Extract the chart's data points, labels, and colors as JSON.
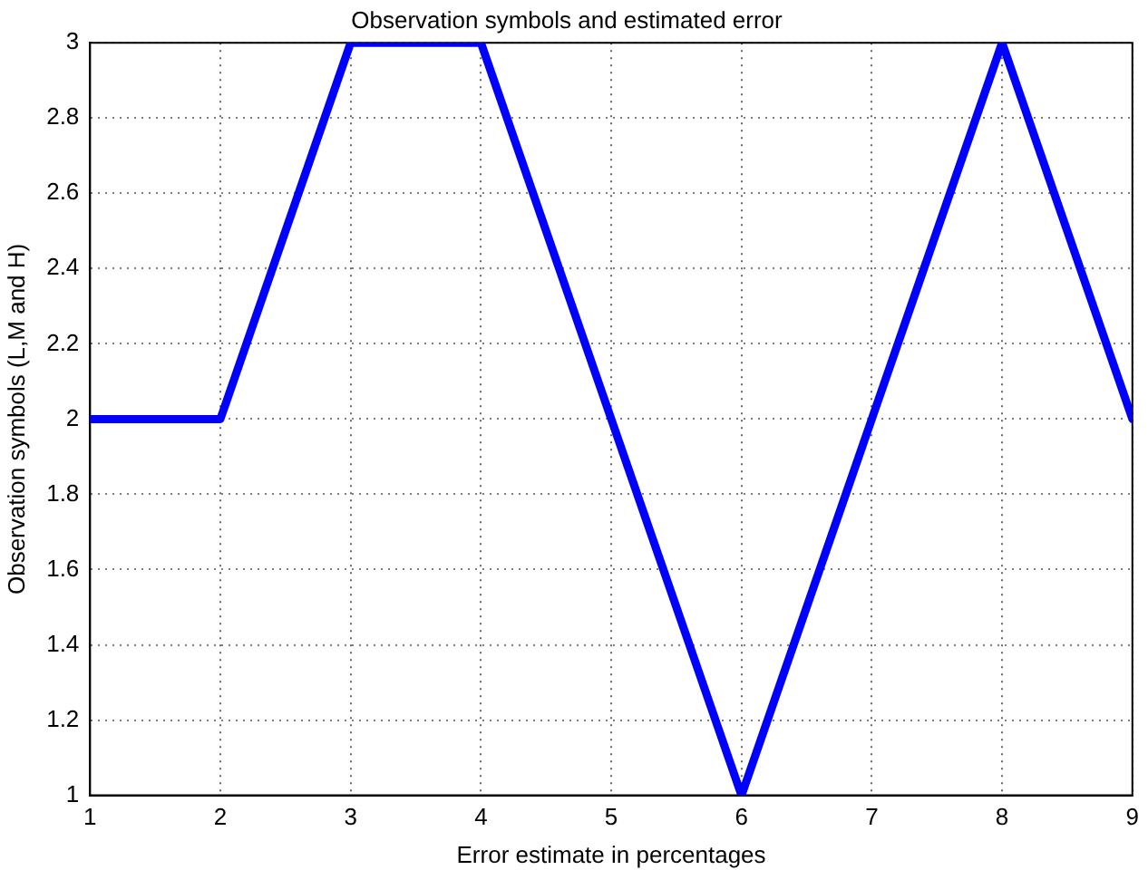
{
  "chart_data": {
    "type": "line",
    "title": "Observation symbols and estimated error",
    "xlabel": "Error estimate in percentages",
    "ylabel": "Observation symbols (L,M and H)",
    "x": [
      1,
      2,
      3,
      4,
      5,
      6,
      7,
      8,
      9
    ],
    "series": [
      {
        "color": "#0000ff",
        "values": [
          2,
          2,
          3,
          3,
          2,
          1,
          2,
          3,
          2
        ]
      }
    ],
    "xlim": [
      1,
      9
    ],
    "xticks": [
      1,
      2,
      3,
      4,
      5,
      6,
      7,
      8,
      9
    ],
    "ylim": [
      1,
      3
    ],
    "yticks": [
      1,
      1.2,
      1.4,
      1.6,
      1.8,
      2,
      2.2,
      2.4,
      2.6,
      2.8,
      3
    ],
    "grid": true,
    "legend": false,
    "marker": "none",
    "line_style": "solid"
  }
}
